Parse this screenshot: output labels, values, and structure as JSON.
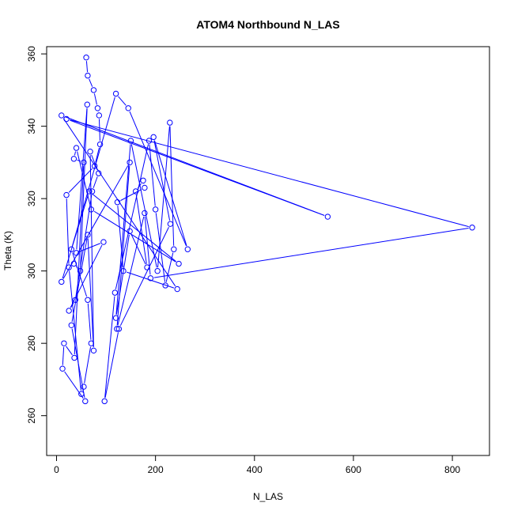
{
  "chart_data": {
    "type": "line",
    "title": "ATOM4 Northbound N_LAS",
    "xlabel": "N_LAS",
    "ylabel": "Theta (K)",
    "xlim": [
      -20,
      875
    ],
    "ylim": [
      249,
      362
    ],
    "x_ticks": [
      0,
      200,
      400,
      600,
      800
    ],
    "y_ticks": [
      260,
      280,
      300,
      320,
      340,
      360
    ],
    "grid": false,
    "legend": "none",
    "line_style": "both points and lines",
    "marker": "open circle",
    "series": [
      {
        "color": "#0000ff",
        "points": [
          [
            60,
            359
          ],
          [
            63,
            354
          ],
          [
            75,
            350
          ],
          [
            83,
            345
          ],
          [
            86,
            343
          ],
          [
            88,
            335
          ],
          [
            77,
            329
          ],
          [
            20,
            321
          ],
          [
            25,
            301
          ],
          [
            50,
            266
          ],
          [
            55,
            268
          ],
          [
            70,
            280
          ],
          [
            63,
            292
          ],
          [
            30,
            306
          ],
          [
            120,
            349
          ],
          [
            145,
            345
          ],
          [
            265,
            306
          ],
          [
            196,
            337
          ],
          [
            230,
            313
          ],
          [
            126,
            284
          ],
          [
            97,
            264
          ],
          [
            118,
            294
          ],
          [
            187,
            336
          ],
          [
            200,
            317
          ],
          [
            220,
            296
          ],
          [
            237,
            306
          ],
          [
            229,
            341
          ],
          [
            204,
            300
          ],
          [
            150,
            336
          ],
          [
            120,
            287
          ],
          [
            148,
            311
          ],
          [
            183,
            301
          ],
          [
            160,
            322
          ],
          [
            175,
            325
          ],
          [
            178,
            323
          ],
          [
            123,
            319
          ],
          [
            135,
            300
          ],
          [
            244,
            295
          ],
          [
            10,
            343
          ],
          [
            548,
            315
          ],
          [
            20,
            342
          ],
          [
            840,
            312
          ],
          [
            190,
            298
          ],
          [
            178,
            316
          ],
          [
            122,
            284
          ],
          [
            148,
            330
          ],
          [
            10,
            297
          ],
          [
            66,
            322
          ],
          [
            247,
            302
          ],
          [
            70,
            317
          ],
          [
            40,
            334
          ],
          [
            35,
            331
          ],
          [
            55,
            330
          ],
          [
            36,
            276
          ],
          [
            15,
            280
          ],
          [
            12,
            273
          ],
          [
            58,
            264
          ],
          [
            30,
            285
          ],
          [
            63,
            310
          ],
          [
            75,
            278
          ],
          [
            68,
            333
          ],
          [
            85,
            327
          ],
          [
            72,
            322
          ],
          [
            38,
            292
          ],
          [
            25,
            289
          ],
          [
            95,
            308
          ],
          [
            40,
            305
          ],
          [
            62,
            346
          ],
          [
            48,
            300
          ],
          [
            35,
            302
          ]
        ]
      }
    ]
  }
}
